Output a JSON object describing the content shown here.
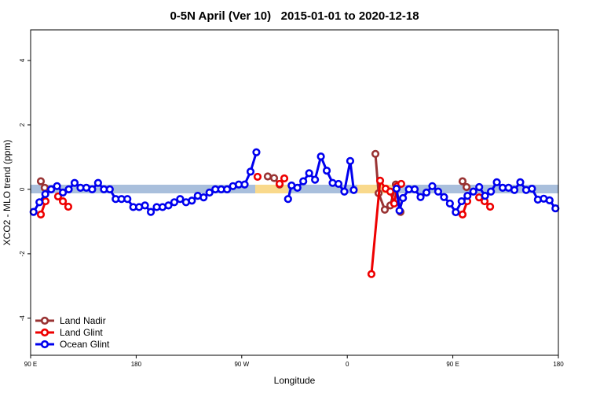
{
  "chart_data": {
    "type": "line",
    "title": "0-5N April (Ver 10)   2015-01-01 to 2020-12-18",
    "x_label": "Longitude",
    "y_label": "XCO2 - MLO trend (ppm)",
    "xlim": [
      90,
      540
    ],
    "xticks": [
      {
        "value": 90,
        "label": "90 E"
      },
      180,
      {
        "value": 270,
        "label": "90 W"
      },
      {
        "value": 360,
        "label": "0"
      },
      {
        "value": 450,
        "label": "90 E"
      },
      {
        "value": 540,
        "label": "180"
      }
    ],
    "ylim": [
      -5.15,
      4.95
    ],
    "yticks": [
      -4,
      -2,
      0,
      2,
      4
    ],
    "legend": "bottom-left",
    "series": [
      {
        "name": "Land Nadir",
        "color": "#993333",
        "x": [
          98.7,
          102,
          null,
          292.2,
          297.6,
          302.3,
          null,
          384,
          386.7,
          392,
          396.7,
          401.4,
          405.4,
          null,
          458.3,
          461.7
        ],
        "values": [
          0.25,
          0.05,
          null,
          0.4,
          0.35,
          0.15,
          null,
          1.1,
          -0.12,
          -0.63,
          -0.5,
          0.15,
          -0.7,
          null,
          0.25,
          0.07
        ]
      },
      {
        "name": "Land Glint",
        "color": "#ee0000",
        "x": [
          98.7,
          102.7,
          null,
          113.4,
          117.5,
          122.1,
          null,
          283.5,
          null,
          302.3,
          306.3,
          null,
          380.6,
          388,
          392.7,
          396.7,
          400,
          402.7,
          406,
          null,
          458.3,
          462.3,
          null,
          472.4,
          477.1,
          481.8
        ],
        "values": [
          -0.78,
          -0.37,
          null,
          -0.22,
          -0.37,
          -0.54,
          null,
          0.39,
          null,
          0.17,
          0.34,
          null,
          -2.63,
          0.27,
          0.02,
          -0.07,
          -0.44,
          0.1,
          0.17,
          null,
          -0.78,
          -0.37,
          null,
          -0.25,
          -0.37,
          -0.54
        ]
      },
      {
        "name": "Ocean Glint",
        "color": "#0000ee",
        "x": [
          92.5,
          97.5,
          102.5,
          107.5,
          112.5,
          117.5,
          122.5,
          127.5,
          132.5,
          137.5,
          142.5,
          147.5,
          152.5,
          157.5,
          162.5,
          167.5,
          172.5,
          177.5,
          182.5,
          187.5,
          192.5,
          197.5,
          202.5,
          207.5,
          212.5,
          217.5,
          222.5,
          227.5,
          232.5,
          237.5,
          242.5,
          247.5,
          252.5,
          257.5,
          262.5,
          267.5,
          272.5,
          277.5,
          282.5,
          null,
          309.5,
          312.5,
          317.5,
          322.5,
          327.5,
          332.5,
          337.5,
          342.5,
          347.5,
          352.5,
          357.5,
          362.5,
          365.5,
          null,
          402,
          404.5,
          407.5,
          412.5,
          417.5,
          422.5,
          427.5,
          432.5,
          437.5,
          442.5,
          447.5,
          452.5,
          457.5,
          462.5,
          467.5,
          472.5,
          477.5,
          482.5,
          487.5,
          492.5,
          497.5,
          502.5,
          507.5,
          512.5,
          517.5,
          522.5,
          527.5,
          532.5,
          537.5
        ],
        "values": [
          -0.7,
          -0.4,
          -0.15,
          0,
          0.1,
          -0.1,
          0,
          0.2,
          0.05,
          0.05,
          0,
          0.2,
          0,
          0,
          -0.3,
          -0.3,
          -0.3,
          -0.55,
          -0.55,
          -0.5,
          -0.7,
          -0.55,
          -0.55,
          -0.5,
          -0.4,
          -0.3,
          -0.4,
          -0.35,
          -0.2,
          -0.25,
          -0.1,
          0,
          0,
          0,
          0.1,
          0.15,
          0.15,
          0.55,
          1.15,
          null,
          -0.3,
          0.12,
          0.05,
          0.25,
          0.5,
          0.3,
          1.02,
          0.58,
          0.2,
          0.17,
          -0.07,
          0.88,
          -0.02,
          null,
          0.02,
          -0.66,
          -0.27,
          0,
          0,
          -0.24,
          -0.1,
          0.1,
          -0.07,
          -0.24,
          -0.44,
          -0.71,
          -0.37,
          -0.2,
          -0.07,
          0.07,
          -0.2,
          -0.07,
          0.22,
          0.05,
          0.05,
          -0.02,
          0.22,
          -0.02,
          0.02,
          -0.32,
          -0.29,
          -0.34,
          -0.59
        ]
      }
    ]
  }
}
